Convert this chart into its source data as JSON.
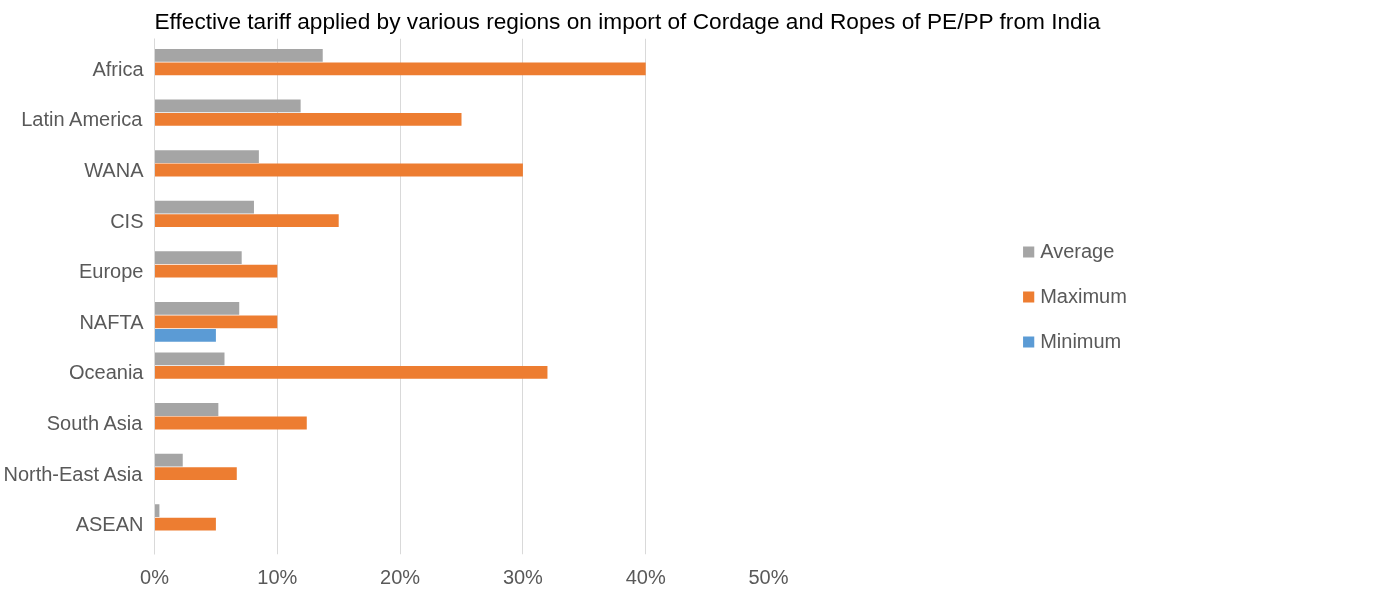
{
  "chart_data": {
    "type": "bar",
    "orientation": "horizontal",
    "title": "Effective tariff applied by various regions on import of Cordage and Ropes of PE/PP from India",
    "categories": [
      "Africa",
      "Latin America",
      "WANA",
      "CIS",
      "Europe",
      "NAFTA",
      "Oceania",
      "South Asia",
      "North-East Asia",
      "ASEAN"
    ],
    "series": [
      {
        "name": "Average",
        "color": "#a5a5a5",
        "values": [
          13.7,
          11.9,
          8.5,
          8.1,
          7.1,
          6.9,
          5.7,
          5.2,
          2.3,
          0.4
        ]
      },
      {
        "name": "Maximum",
        "color": "#ed7d31",
        "values": [
          40,
          25,
          30,
          15,
          10,
          10,
          32,
          12.4,
          6.7,
          5
        ]
      },
      {
        "name": "Minimum",
        "color": "#5b9bd5",
        "values": [
          null,
          null,
          null,
          null,
          null,
          5,
          null,
          null,
          null,
          null
        ]
      }
    ],
    "xlim": [
      0,
      50
    ],
    "xticks": [
      {
        "value": 0,
        "label": "0%"
      },
      {
        "value": 10,
        "label": "10%"
      },
      {
        "value": 20,
        "label": "20%"
      },
      {
        "value": 30,
        "label": "30%"
      },
      {
        "value": 40,
        "label": "40%"
      },
      {
        "value": 50,
        "label": "50%"
      }
    ],
    "grid": "x",
    "legend": "right"
  }
}
